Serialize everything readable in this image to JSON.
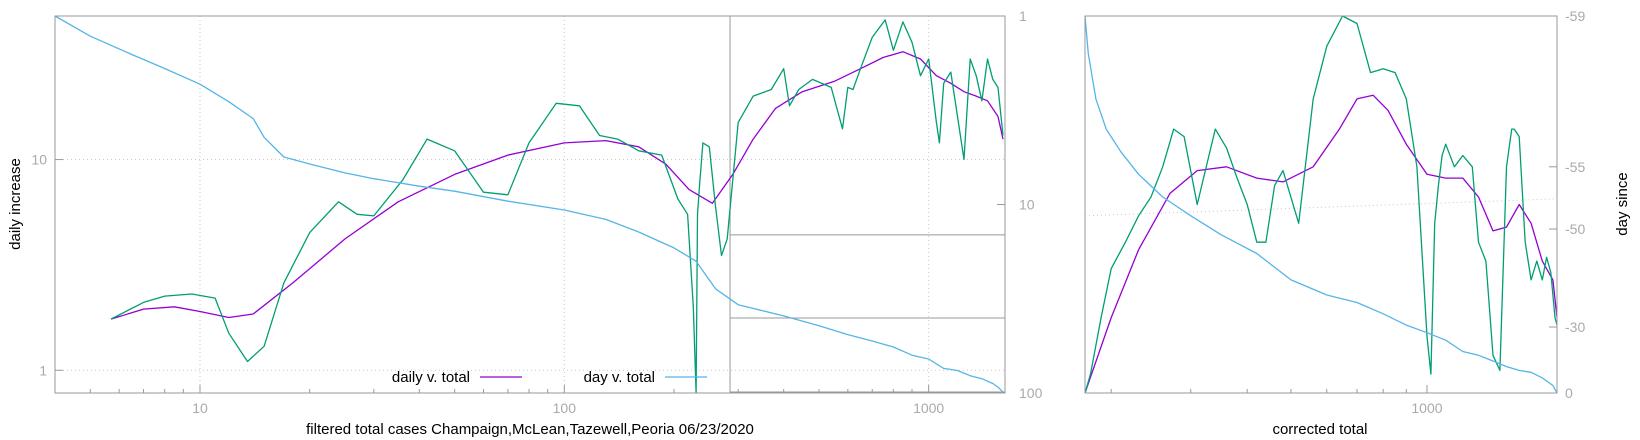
{
  "colors": {
    "daily": "#9400d3",
    "raw": "#009e73",
    "day": "#56b4e9",
    "frame": "#999999"
  },
  "chart_data": [
    {
      "type": "line",
      "xlabel": "filtered total cases Champaign,McLean,Tazewell,Peoria 06/23/2020",
      "ylabel": "daily increase",
      "x_scale": "log",
      "y_scale": "log",
      "xlim": [
        4,
        1620
      ],
      "ylim": [
        0.78,
        48
      ],
      "y2lim": [
        1,
        100
      ],
      "y2_scale": "log",
      "y2_reversed": true,
      "xticks": [
        10,
        100,
        1000
      ],
      "yticks": [
        1,
        10
      ],
      "y2ticks": [
        1,
        10,
        100
      ],
      "grid": true,
      "legend": "bottom-center",
      "reference_lines": {
        "x": 285,
        "y2": [
          14.5,
          40,
          100
        ]
      },
      "series": [
        {
          "name": "daily v. total",
          "color": "#9400d3",
          "x": [
            5.7,
            7,
            8.5,
            10,
            12,
            14,
            18,
            25,
            35,
            50,
            70,
            100,
            130,
            160,
            190,
            220,
            255,
            290,
            330,
            380,
            450,
            550,
            650,
            750,
            850,
            950,
            1050,
            1150,
            1250,
            1350,
            1450,
            1550,
            1600
          ],
          "y": [
            1.75,
            1.95,
            2.0,
            1.9,
            1.78,
            1.85,
            2.6,
            4.2,
            6.3,
            8.5,
            10.5,
            12.0,
            12.3,
            11.5,
            9.5,
            7.2,
            6.2,
            8.5,
            12.5,
            17.5,
            21.0,
            23.5,
            27.0,
            30.5,
            32.5,
            30.0,
            25.0,
            23.0,
            21.0,
            20.0,
            19.0,
            16.0,
            12.5
          ]
        },
        {
          "name": "",
          "color": "#009e73",
          "x": [
            5.7,
            7,
            8,
            9.5,
            11,
            12,
            13.5,
            15,
            17,
            20,
            24,
            27,
            30,
            36,
            42,
            50,
            60,
            70,
            80,
            95,
            110,
            125,
            140,
            160,
            185,
            205,
            218,
            226,
            230,
            232,
            235,
            240,
            250,
            260,
            270,
            280,
            300,
            330,
            370,
            400,
            415,
            440,
            480,
            540,
            580,
            600,
            620,
            650,
            700,
            760,
            800,
            850,
            900,
            950,
            1000,
            1050,
            1070,
            1100,
            1150,
            1200,
            1250,
            1300,
            1350,
            1400,
            1450,
            1500,
            1550,
            1600
          ],
          "y": [
            1.75,
            2.1,
            2.25,
            2.3,
            2.2,
            1.5,
            1.1,
            1.3,
            2.6,
            4.5,
            6.3,
            5.5,
            5.4,
            8.0,
            12.5,
            11.0,
            7.0,
            6.8,
            12.0,
            18.5,
            18.0,
            13.0,
            12.5,
            11.0,
            10.5,
            6.5,
            5.5,
            2.0,
            0.78,
            5.5,
            7.5,
            12.0,
            11.5,
            6.0,
            3.5,
            4.2,
            15.0,
            20.0,
            21.5,
            27.0,
            18.0,
            21.5,
            24.0,
            22.0,
            14.0,
            22.0,
            21.5,
            27.0,
            38.0,
            46.0,
            33.0,
            45.0,
            36.0,
            25.0,
            30.0,
            15.0,
            12.0,
            23.0,
            26.0,
            16.0,
            10.0,
            30.0,
            25.0,
            19.0,
            30.0,
            24.0,
            22.0,
            13.0
          ]
        },
        {
          "name": "day v. total",
          "color": "#56b4e9",
          "axis": "y2",
          "x": [
            4,
            5,
            6.5,
            8,
            10,
            12,
            14,
            15,
            17,
            20,
            25,
            30,
            40,
            50,
            70,
            100,
            130,
            160,
            200,
            230,
            260,
            300,
            400,
            500,
            600,
            700,
            800,
            900,
            1000,
            1100,
            1200,
            1300,
            1400,
            1500,
            1550,
            1600
          ],
          "y": [
            1,
            1.28,
            1.6,
            1.9,
            2.3,
            2.85,
            3.5,
            4.4,
            5.6,
            6.1,
            6.8,
            7.3,
            8.0,
            8.5,
            9.6,
            10.7,
            12.0,
            14.0,
            17.0,
            20.0,
            28.0,
            34.0,
            39.0,
            44.0,
            49.0,
            53.0,
            57.0,
            63.0,
            66.0,
            74.0,
            76.0,
            81.0,
            84.0,
            89.0,
            93.0,
            99.0
          ]
        }
      ]
    },
    {
      "type": "line",
      "xlabel": "corrected total",
      "ylabel": "day since",
      "x_scale": "log",
      "xlim": [
        175,
        1940
      ],
      "xticks": [
        1000
      ],
      "y2lim": [
        0,
        59
      ],
      "y2ticks": [
        0,
        30,
        50,
        55,
        59
      ],
      "y2_labels": [
        "0",
        "-30",
        "-50",
        "-55",
        "-59"
      ],
      "y2_positions_fraction": [
        0,
        0.175,
        0.435,
        0.6,
        1
      ],
      "grid": false,
      "reference_lines": {
        "dotted_y_fraction": [
          0.47,
          0.515
        ]
      },
      "series": [
        {
          "name": "",
          "color": "#9400d3",
          "x": [
            175,
            200,
            230,
            270,
            310,
            360,
            420,
            480,
            560,
            640,
            700,
            760,
            820,
            900,
            1000,
            1100,
            1200,
            1300,
            1400,
            1500,
            1600,
            1700,
            1800,
            1900,
            1940
          ],
          "y": [
            0.0,
            0.2,
            0.38,
            0.53,
            0.59,
            0.6,
            0.57,
            0.56,
            0.6,
            0.7,
            0.78,
            0.79,
            0.75,
            0.66,
            0.58,
            0.57,
            0.57,
            0.52,
            0.43,
            0.44,
            0.5,
            0.45,
            0.35,
            0.3,
            0.2
          ]
        },
        {
          "name": "",
          "color": "#009e73",
          "x": [
            175,
            180,
            190,
            200,
            215,
            230,
            245,
            260,
            275,
            290,
            310,
            340,
            360,
            380,
            400,
            420,
            440,
            460,
            480,
            520,
            560,
            600,
            650,
            700,
            750,
            800,
            850,
            900,
            950,
            1000,
            1020,
            1040,
            1060,
            1080,
            1100,
            1150,
            1200,
            1260,
            1300,
            1350,
            1400,
            1450,
            1500,
            1540,
            1560,
            1600,
            1650,
            1700,
            1750,
            1800,
            1840,
            1880,
            1920,
            1940
          ],
          "y": [
            0.0,
            0.05,
            0.2,
            0.33,
            0.4,
            0.47,
            0.52,
            0.6,
            0.7,
            0.68,
            0.5,
            0.7,
            0.65,
            0.57,
            0.5,
            0.4,
            0.4,
            0.55,
            0.59,
            0.45,
            0.78,
            0.92,
            1.0,
            0.98,
            0.85,
            0.86,
            0.85,
            0.78,
            0.6,
            0.15,
            0.05,
            0.45,
            0.55,
            0.63,
            0.66,
            0.6,
            0.63,
            0.6,
            0.4,
            0.35,
            0.1,
            0.06,
            0.6,
            0.7,
            0.7,
            0.68,
            0.4,
            0.3,
            0.35,
            0.3,
            0.36,
            0.32,
            0.2,
            0.18
          ]
        },
        {
          "name": "",
          "color": "#56b4e9",
          "x": [
            175,
            178,
            185,
            195,
            210,
            230,
            260,
            300,
            350,
            420,
            500,
            600,
            700,
            800,
            900,
            1000,
            1100,
            1200,
            1300,
            1400,
            1500,
            1600,
            1700,
            1800,
            1900,
            1940
          ],
          "y": [
            1.0,
            0.9,
            0.78,
            0.7,
            0.64,
            0.58,
            0.52,
            0.47,
            0.42,
            0.37,
            0.3,
            0.26,
            0.24,
            0.21,
            0.18,
            0.16,
            0.14,
            0.11,
            0.1,
            0.085,
            0.07,
            0.06,
            0.055,
            0.04,
            0.02,
            0.0
          ]
        }
      ]
    }
  ]
}
